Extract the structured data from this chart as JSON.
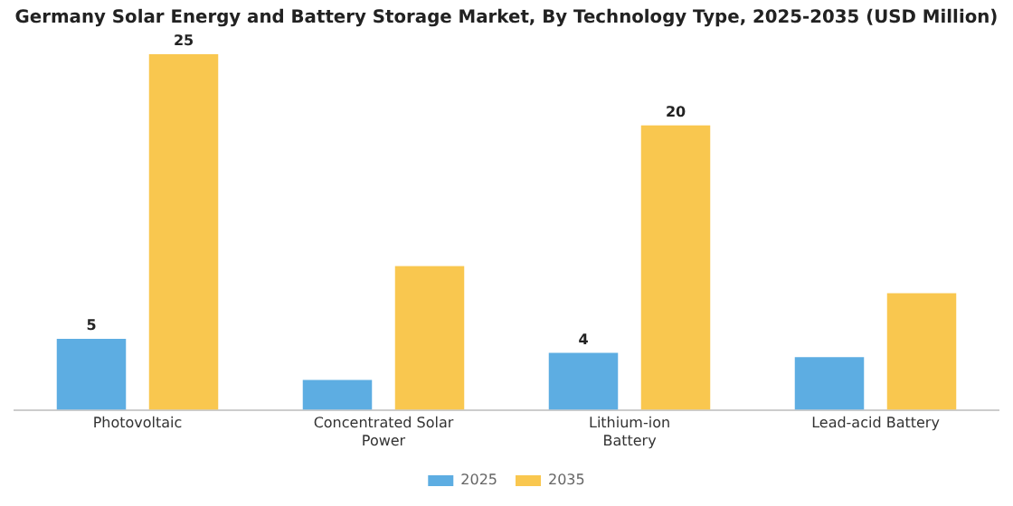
{
  "chart_data": {
    "type": "bar",
    "title": "Germany Solar Energy and Battery Storage Market, By Technology Type, 2025-2035 (USD Million)",
    "categories": [
      "Photovoltaic",
      "Concentrated Solar Power",
      "Lithium-ion Battery",
      "Lead-acid Battery"
    ],
    "series": [
      {
        "name": "2025",
        "color": "#5dade2",
        "values": [
          5,
          2.1,
          4,
          3.7
        ],
        "value_labels": [
          "5",
          null,
          "4",
          null
        ]
      },
      {
        "name": "2035",
        "color": "#f9c74f",
        "values": [
          25,
          10.1,
          20,
          8.2
        ],
        "value_labels": [
          "25",
          null,
          "20",
          null
        ]
      }
    ],
    "legend": "bottom",
    "grid": false
  }
}
